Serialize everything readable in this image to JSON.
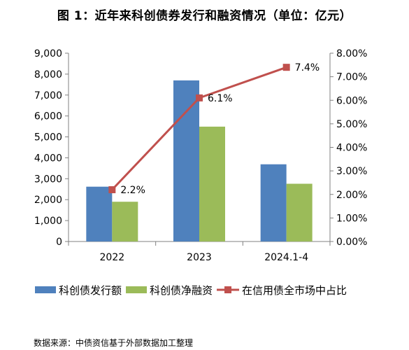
{
  "title": "图 1：近年来科创债券发行和融资情况（单位：亿元）",
  "source_note": "数据来源：中债资信基于外部数据加工整理",
  "chart_data": {
    "type": "bar",
    "categories": [
      "2022",
      "2023",
      "2024.1-4"
    ],
    "series": [
      {
        "name": "科创债发行额",
        "type": "bar",
        "axis": "left",
        "color": "#4f81bd",
        "values": [
          2620,
          7700,
          3690
        ]
      },
      {
        "name": "科创债净融资",
        "type": "bar",
        "axis": "left",
        "color": "#9bbb59",
        "values": [
          1900,
          5490,
          2760
        ]
      },
      {
        "name": "在信用债全市场中占比",
        "type": "line",
        "axis": "right",
        "color": "#c0504d",
        "values": [
          2.2,
          6.1,
          7.4
        ],
        "data_labels": [
          "2.2%",
          "6.1%",
          "7.4%"
        ]
      }
    ],
    "y_left": {
      "min": 0,
      "max": 9000,
      "step": 1000,
      "tick_labels": [
        "0",
        "1,000",
        "2,000",
        "3,000",
        "4,000",
        "5,000",
        "6,000",
        "7,000",
        "8,000",
        "9,000"
      ]
    },
    "y_right": {
      "min": 0,
      "max": 8,
      "step": 1,
      "tick_labels": [
        "0.00%",
        "1.00%",
        "2.00%",
        "3.00%",
        "4.00%",
        "5.00%",
        "6.00%",
        "7.00%",
        "8.00%"
      ]
    },
    "grid": false,
    "legend_position": "bottom"
  }
}
